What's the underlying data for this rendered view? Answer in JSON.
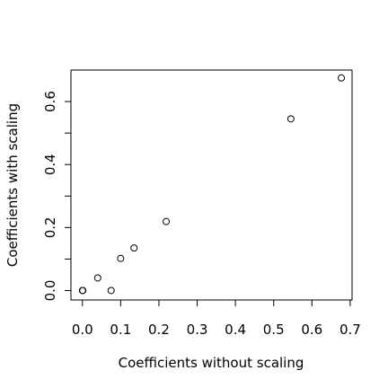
{
  "chart_data": {
    "type": "scatter",
    "title": "",
    "xlabel": "Coefficients without scaling",
    "ylabel": "Coefficients with scaling",
    "xlim": [
      -0.03,
      0.705
    ],
    "ylim": [
      -0.03,
      0.7
    ],
    "xticks": [
      0.0,
      0.1,
      0.2,
      0.3,
      0.4,
      0.5,
      0.6,
      0.7
    ],
    "xtick_labels": [
      "0.0",
      "0.1",
      "0.2",
      "0.3",
      "0.4",
      "0.5",
      "0.6",
      "0.7"
    ],
    "yticks": [
      0.0,
      0.1,
      0.2,
      0.3,
      0.4,
      0.5,
      0.6
    ],
    "yticks_labeled": [
      0.0,
      0.2,
      0.4,
      0.6
    ],
    "ytick_labels": [
      "0.0",
      "0.2",
      "0.4",
      "0.6"
    ],
    "grid": false,
    "points": [
      {
        "x": 0.0,
        "y": 0.0
      },
      {
        "x": 0.001,
        "y": 0.0
      },
      {
        "x": 0.04,
        "y": 0.04
      },
      {
        "x": 0.075,
        "y": 0.0
      },
      {
        "x": 0.1,
        "y": 0.102
      },
      {
        "x": 0.135,
        "y": 0.135
      },
      {
        "x": 0.219,
        "y": 0.219
      },
      {
        "x": 0.545,
        "y": 0.545
      },
      {
        "x": 0.677,
        "y": 0.675
      }
    ]
  }
}
